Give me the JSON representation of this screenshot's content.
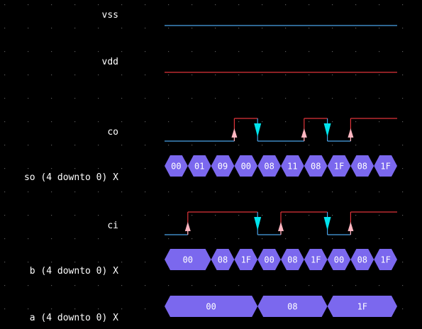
{
  "colors": {
    "background": "#000000",
    "grid_dot": "#5a5a5a",
    "low_line": "#4aa3e8",
    "high_line": "#e0343a",
    "vss_line": "#4aa3e8",
    "vdd_line": "#e0343a",
    "bus_fill": "#7b68ee",
    "label_text": "#ffffff",
    "rise_marker": "#ffb6c1",
    "fall_marker": "#00e5ee"
  },
  "signals": [
    {
      "name": "vss",
      "type": "supply",
      "level": 0,
      "row": 0
    },
    {
      "name": "vdd",
      "type": "supply",
      "level": 1,
      "row": 1
    },
    {
      "name": "co",
      "type": "bit",
      "row": 2,
      "initial": 0,
      "transitions": [
        {
          "t": 3,
          "v": 1
        },
        {
          "t": 4,
          "v": 0
        },
        {
          "t": 6,
          "v": 1
        },
        {
          "t": 7,
          "v": 0
        },
        {
          "t": 8,
          "v": 1
        }
      ],
      "markers": [
        {
          "t": 3,
          "dir": "rise"
        },
        {
          "t": 4,
          "dir": "fall"
        },
        {
          "t": 6,
          "dir": "rise"
        },
        {
          "t": 7,
          "dir": "fall"
        },
        {
          "t": 8,
          "dir": "rise"
        }
      ]
    },
    {
      "name": "so (4 downto 0) X",
      "type": "bus",
      "row": 3,
      "segments": [
        {
          "start": 0,
          "end": 1,
          "value": "00"
        },
        {
          "start": 1,
          "end": 2,
          "value": "01"
        },
        {
          "start": 2,
          "end": 3,
          "value": "09"
        },
        {
          "start": 3,
          "end": 4,
          "value": "00"
        },
        {
          "start": 4,
          "end": 5,
          "value": "08"
        },
        {
          "start": 5,
          "end": 6,
          "value": "11"
        },
        {
          "start": 6,
          "end": 7,
          "value": "08"
        },
        {
          "start": 7,
          "end": 8,
          "value": "1F"
        },
        {
          "start": 8,
          "end": 9,
          "value": "08"
        },
        {
          "start": 9,
          "end": 10,
          "value": "1F"
        }
      ]
    },
    {
      "name": "ci",
      "type": "bit",
      "row": 4,
      "initial": 0,
      "transitions": [
        {
          "t": 1,
          "v": 1
        },
        {
          "t": 4,
          "v": 0
        },
        {
          "t": 5,
          "v": 1
        },
        {
          "t": 7,
          "v": 0
        },
        {
          "t": 8,
          "v": 1
        }
      ],
      "markers": [
        {
          "t": 1,
          "dir": "rise"
        },
        {
          "t": 4,
          "dir": "fall"
        },
        {
          "t": 5,
          "dir": "rise"
        },
        {
          "t": 7,
          "dir": "fall"
        },
        {
          "t": 8,
          "dir": "rise"
        }
      ]
    },
    {
      "name": "b (4 downto 0) X",
      "type": "bus",
      "row": 5,
      "segments": [
        {
          "start": 0,
          "end": 2,
          "value": "00"
        },
        {
          "start": 2,
          "end": 3,
          "value": "08"
        },
        {
          "start": 3,
          "end": 4,
          "value": "1F"
        },
        {
          "start": 4,
          "end": 5,
          "value": "00"
        },
        {
          "start": 5,
          "end": 6,
          "value": "08"
        },
        {
          "start": 6,
          "end": 7,
          "value": "1F"
        },
        {
          "start": 7,
          "end": 8,
          "value": "00"
        },
        {
          "start": 8,
          "end": 9,
          "value": "08"
        },
        {
          "start": 9,
          "end": 10,
          "value": "1F"
        }
      ]
    },
    {
      "name": "a (4 downto 0) X",
      "type": "bus",
      "row": 6,
      "segments": [
        {
          "start": 0,
          "end": 4,
          "value": "00"
        },
        {
          "start": 4,
          "end": 7,
          "value": "08"
        },
        {
          "start": 7,
          "end": 10,
          "value": "1F"
        }
      ]
    }
  ],
  "time_steps": 10
}
